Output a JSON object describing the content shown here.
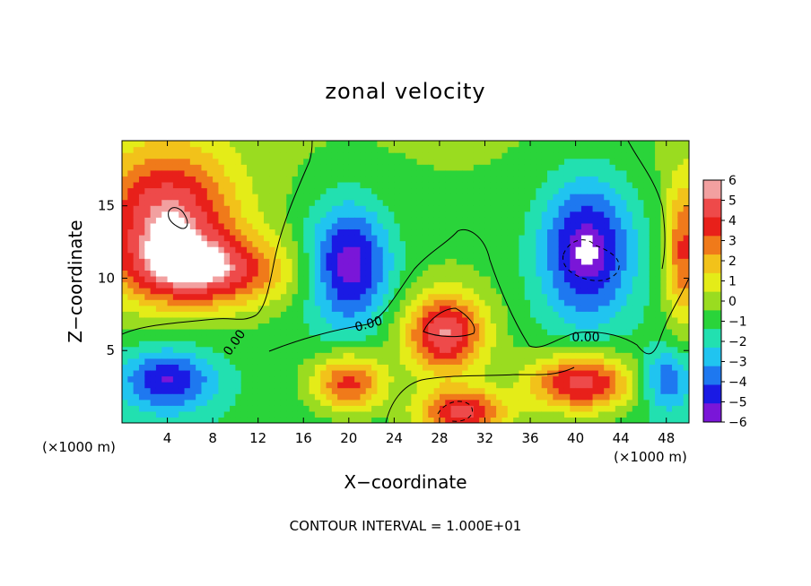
{
  "chart_data": {
    "type": "heatmap",
    "title": "zonal velocity",
    "xlabel": "X−coordinate",
    "ylabel": "Z−coordinate",
    "x_unit_left": "(×1000 m)",
    "x_unit_right": "(×1000 m)",
    "footer": "CONTOUR INTERVAL = 1.000E+01",
    "xlim": [
      0,
      50
    ],
    "ylim": [
      0,
      19.5
    ],
    "x_ticks": [
      4,
      8,
      12,
      16,
      20,
      24,
      28,
      32,
      36,
      40,
      44,
      48
    ],
    "y_ticks": [
      5,
      10,
      15
    ],
    "colorbar": {
      "ticks": [
        "6",
        "5",
        "4",
        "3",
        "2",
        "1",
        "0",
        "−1",
        "−2",
        "−3",
        "−4",
        "−5",
        "−6"
      ],
      "colors": [
        "#f2a0a0",
        "#ee4a4a",
        "#e8201a",
        "#f07a1a",
        "#f2c21a",
        "#e4ec18",
        "#9adc20",
        "#2ad43a",
        "#22e0b0",
        "#20c4f0",
        "#1e78f0",
        "#1a1ae4",
        "#7a16d8"
      ],
      "range": [
        -6,
        6
      ]
    },
    "contour_labels": [
      "0.00",
      "0.00",
      "0.00"
    ],
    "saturated_color": "#ffffff",
    "line_color": "#000000",
    "grid": false,
    "features": [
      {
        "name": "upper-left positive jet",
        "x": 4.0,
        "z": 14.0,
        "value": 6.5,
        "sx": 6.0,
        "sz": 5.0
      },
      {
        "name": "left positive tongue",
        "x": 8.0,
        "z": 10.5,
        "value": 5.0,
        "sx": 7.0,
        "sz": 2.4
      },
      {
        "name": "upper center negative cell",
        "x": 20.0,
        "z": 11.0,
        "value": -5.5,
        "sx": 3.6,
        "sz": 4.2
      },
      {
        "name": "upper right negative cell",
        "x": 41.0,
        "z": 12.0,
        "value": -5.5,
        "sx": 4.2,
        "sz": 5.0
      },
      {
        "name": "central positive core",
        "x": 28.5,
        "z": 6.2,
        "value": 6.5,
        "sx": 3.6,
        "sz": 2.8
      },
      {
        "name": "lower center positive",
        "x": 20.0,
        "z": 2.8,
        "value": 5.0,
        "sx": 3.2,
        "sz": 2.0
      },
      {
        "name": "lower right positive",
        "x": 40.5,
        "z": 2.8,
        "value": 6.2,
        "sx": 4.6,
        "sz": 2.0
      },
      {
        "name": "bottom center positive",
        "x": 30.0,
        "z": 0.8,
        "value": 6.0,
        "sx": 4.0,
        "sz": 1.6
      },
      {
        "name": "lower left negative",
        "x": 4.0,
        "z": 3.0,
        "value": -4.5,
        "sx": 4.2,
        "sz": 2.2
      },
      {
        "name": "right edge positive",
        "x": 49.5,
        "z": 12.0,
        "value": 4.5,
        "sx": 1.6,
        "sz": 5.0
      },
      {
        "name": "lower right negative",
        "x": 48.0,
        "z": 3.0,
        "value": -3.5,
        "sx": 2.2,
        "sz": 2.2
      }
    ]
  }
}
